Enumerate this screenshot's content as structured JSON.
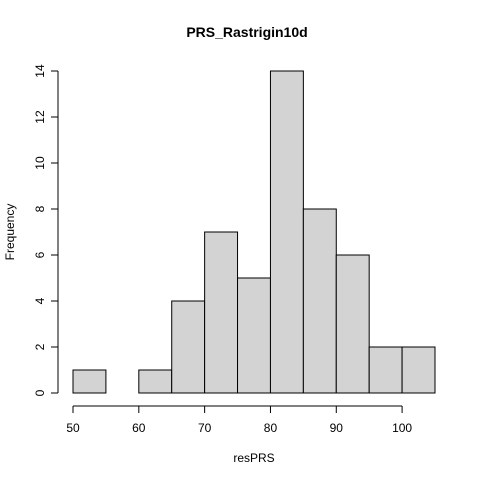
{
  "chart_data": {
    "type": "histogram",
    "title": "PRS_Rastrigin10d",
    "xlabel": "resPRS",
    "ylabel": "Frequency",
    "bins": [
      {
        "start": 50,
        "end": 55,
        "count": 1
      },
      {
        "start": 55,
        "end": 60,
        "count": 0
      },
      {
        "start": 60,
        "end": 65,
        "count": 1
      },
      {
        "start": 65,
        "end": 70,
        "count": 4
      },
      {
        "start": 70,
        "end": 75,
        "count": 7
      },
      {
        "start": 75,
        "end": 80,
        "count": 5
      },
      {
        "start": 80,
        "end": 85,
        "count": 14
      },
      {
        "start": 85,
        "end": 90,
        "count": 8
      },
      {
        "start": 90,
        "end": 95,
        "count": 6
      },
      {
        "start": 95,
        "end": 100,
        "count": 2
      },
      {
        "start": 100,
        "end": 105,
        "count": 2
      }
    ],
    "x_ticks": [
      50,
      60,
      70,
      80,
      90,
      100
    ],
    "y_ticks": [
      0,
      2,
      4,
      6,
      8,
      10,
      12,
      14
    ],
    "xlim": [
      50,
      105
    ],
    "ylim": [
      0,
      14
    ],
    "grid": false
  }
}
